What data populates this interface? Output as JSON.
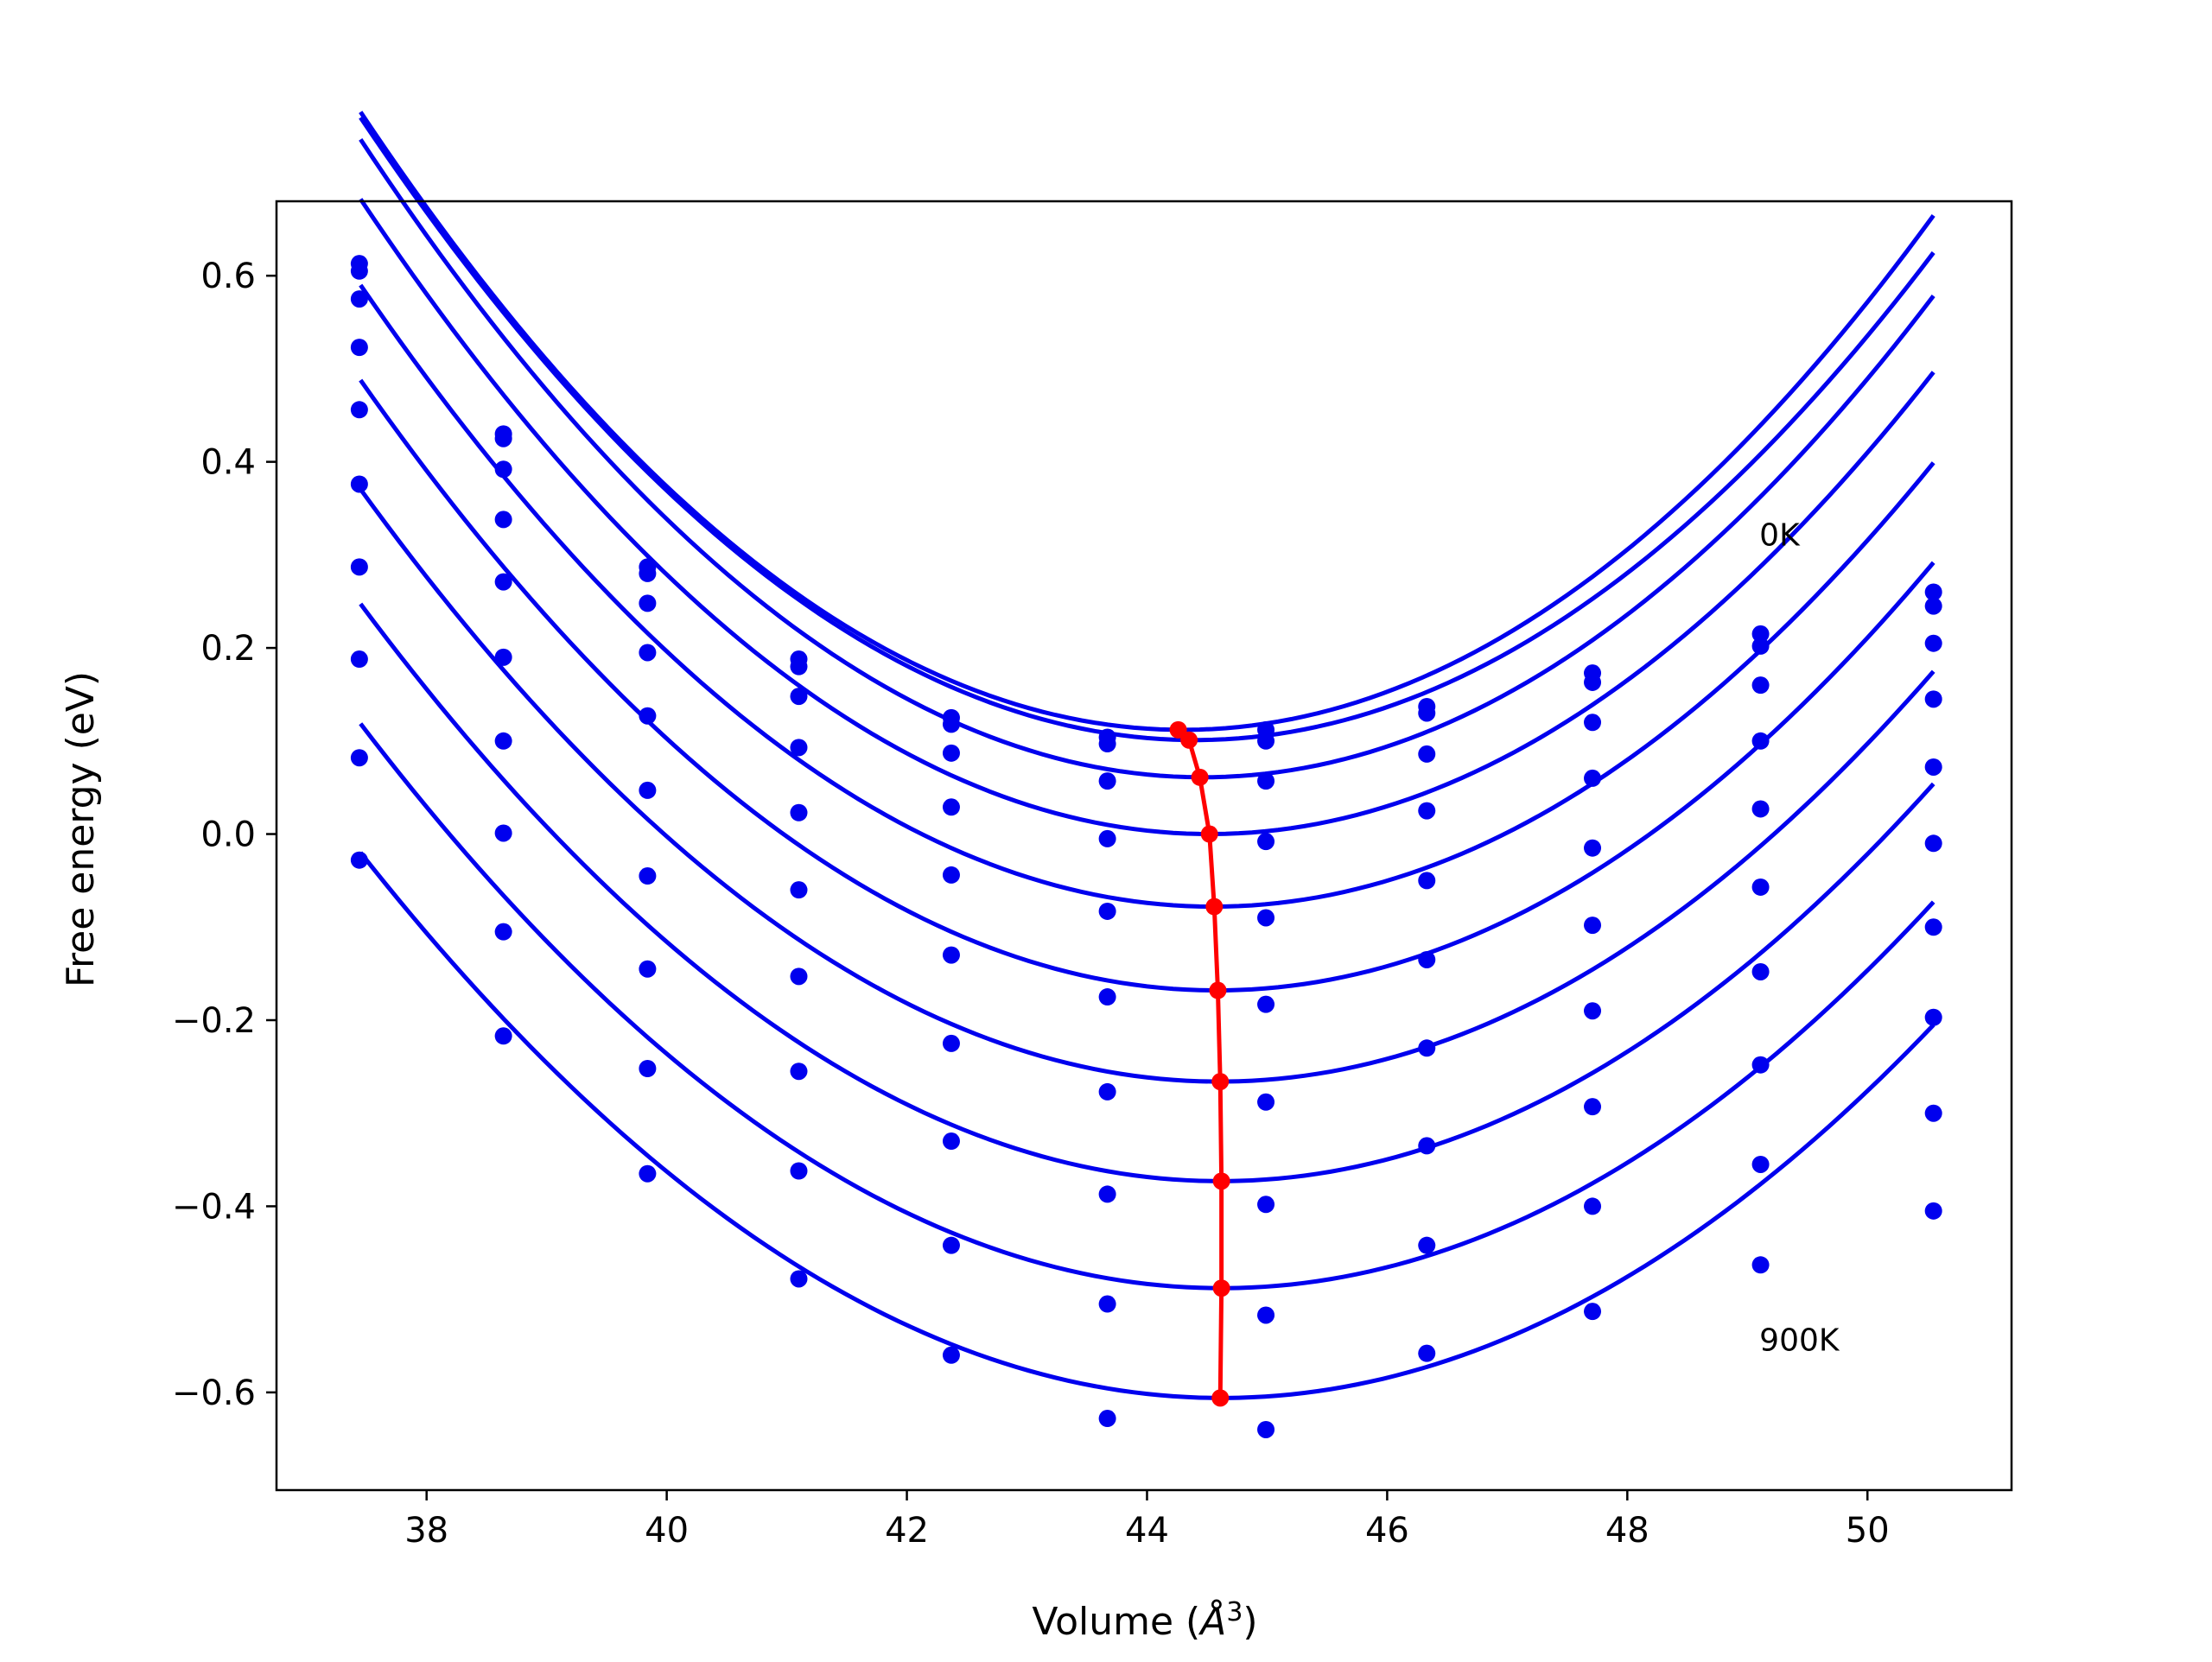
{
  "chart_data": {
    "type": "scatter",
    "title": "",
    "xlabel": "Volume (Å³)",
    "xlabel_parts": {
      "text": "Volume (",
      "unit": "Å",
      "sup": "3",
      "close": ")"
    },
    "ylabel": "Free energy (eV)",
    "xlim": [
      36.75,
      51.2
    ],
    "ylim": [
      -0.705,
      0.68
    ],
    "x_ticks": [
      38,
      40,
      42,
      44,
      46,
      48,
      50
    ],
    "x_tick_labels": [
      "38",
      "40",
      "42",
      "44",
      "46",
      "48",
      "50"
    ],
    "y_ticks": [
      0.6,
      0.4,
      0.2,
      0.0,
      -0.2,
      -0.4,
      -0.6
    ],
    "y_tick_labels": [
      "0.6",
      "0.4",
      "0.2",
      "0.0",
      "−0.2",
      "−0.4",
      "−0.6"
    ],
    "grid": false,
    "annotations": [
      {
        "text": "0K",
        "x": 49.1,
        "y": 0.31
      },
      {
        "text": "900K",
        "x": 49.1,
        "y": -0.555
      }
    ],
    "colors": {
      "series": "#0000ee",
      "minima": "#ff0000",
      "axes": "#000000"
    },
    "x": [
      37.44,
      38.64,
      39.84,
      41.1,
      42.37,
      43.67,
      44.99,
      46.33,
      47.71,
      49.11,
      50.55
    ],
    "series": [
      {
        "points": [
          0.613,
          0.43,
          0.287,
          0.188,
          0.125,
          0.104,
          0.112,
          0.137,
          0.173,
          0.215,
          0.26
        ],
        "fit": {
          "a": 0.01415,
          "v0": 44.3,
          "e0": 0.112,
          "v_range": [
            37.45,
            50.55
          ]
        }
      },
      {
        "points": [
          0.605,
          0.425,
          0.28,
          0.18,
          0.118,
          0.097,
          0.1,
          0.13,
          0.163,
          0.202,
          0.245
        ],
        "fit": {
          "a": 0.01385,
          "v0": 44.4,
          "e0": 0.101,
          "v_range": [
            37.45,
            50.55
          ]
        }
      },
      {
        "points": [
          0.575,
          0.392,
          0.248,
          0.148,
          0.087,
          0.057,
          0.057,
          0.086,
          0.12,
          0.16,
          0.205
        ],
        "fit": {
          "a": 0.01395,
          "v0": 44.46,
          "e0": 0.061,
          "v_range": [
            37.45,
            50.55
          ]
        }
      },
      {
        "points": [
          0.523,
          0.338,
          0.195,
          0.093,
          0.029,
          -0.005,
          -0.008,
          0.025,
          0.06,
          0.1,
          0.145
        ],
        "fit": {
          "a": 0.01365,
          "v0": 44.52,
          "e0": 0.0,
          "v_range": [
            37.45,
            50.55
          ]
        }
      },
      {
        "points": [
          0.456,
          0.271,
          0.127,
          0.023,
          -0.044,
          -0.083,
          -0.09,
          -0.05,
          -0.015,
          0.027,
          0.072
        ],
        "fit": {
          "a": 0.01325,
          "v0": 44.55,
          "e0": -0.078,
          "v_range": [
            37.45,
            50.55
          ]
        }
      },
      {
        "points": [
          0.376,
          0.19,
          0.047,
          -0.06,
          -0.13,
          -0.175,
          -0.183,
          -0.135,
          -0.098,
          -0.057,
          -0.01
        ],
        "fit": {
          "a": 0.0129,
          "v0": 44.58,
          "e0": -0.168,
          "v_range": [
            37.45,
            50.55
          ]
        }
      },
      {
        "points": [
          0.287,
          0.1,
          -0.045,
          -0.153,
          -0.225,
          -0.277,
          -0.288,
          -0.23,
          -0.19,
          -0.148,
          -0.1
        ],
        "fit": {
          "a": 0.01245,
          "v0": 44.6,
          "e0": -0.266,
          "v_range": [
            37.45,
            50.55
          ]
        }
      },
      {
        "points": [
          0.188,
          0.001,
          -0.145,
          -0.255,
          -0.33,
          -0.387,
          -0.398,
          -0.335,
          -0.293,
          -0.248,
          -0.197
        ],
        "fit": {
          "a": 0.0121,
          "v0": 44.61,
          "e0": -0.373,
          "v_range": [
            37.45,
            50.55
          ]
        }
      },
      {
        "points": [
          0.082,
          -0.105,
          -0.252,
          -0.362,
          -0.442,
          -0.505,
          -0.517,
          -0.442,
          -0.4,
          -0.355,
          -0.3
        ],
        "fit": {
          "a": 0.0118,
          "v0": 44.62,
          "e0": -0.488,
          "v_range": [
            37.45,
            50.55
          ]
        }
      },
      {
        "points": [
          -0.028,
          -0.217,
          -0.365,
          -0.478,
          -0.56,
          -0.628,
          -0.64,
          -0.558,
          -0.513,
          -0.463,
          -0.405
        ],
        "fit": {
          "a": 0.0114,
          "v0": 44.62,
          "e0": -0.606,
          "v_range": [
            37.45,
            50.55
          ]
        }
      }
    ],
    "minima_curve": {
      "x": [
        44.26,
        44.35,
        44.44,
        44.52,
        44.56,
        44.59,
        44.61,
        44.62,
        44.62,
        44.61
      ],
      "y": [
        0.112,
        0.101,
        0.061,
        0.0,
        -0.078,
        -0.168,
        -0.266,
        -0.373,
        -0.488,
        -0.606
      ]
    }
  }
}
